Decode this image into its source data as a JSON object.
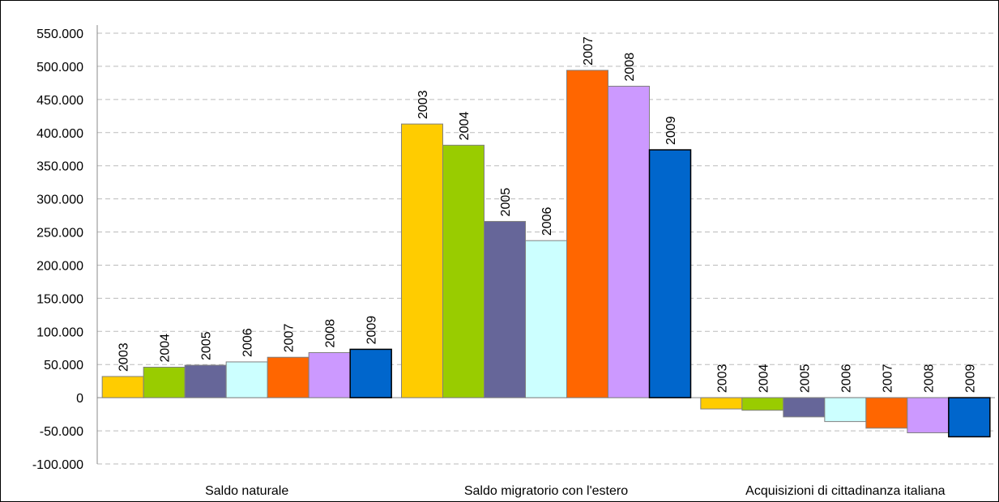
{
  "chart_data": {
    "type": "bar",
    "categories": [
      "Saldo naturale",
      "Saldo migratorio con l'estero",
      "Acquisizioni di cittadinanza italiana"
    ],
    "series": [
      {
        "name": "2003",
        "color": "#ffcc00",
        "values": [
          32000,
          413000,
          -17000
        ]
      },
      {
        "name": "2004",
        "color": "#99cc00",
        "values": [
          46000,
          381000,
          -19000
        ]
      },
      {
        "name": "2005",
        "color": "#666699",
        "values": [
          49000,
          266000,
          -29000
        ]
      },
      {
        "name": "2006",
        "color": "#ccffff",
        "values": [
          54000,
          237000,
          -36000
        ]
      },
      {
        "name": "2007",
        "color": "#ff6600",
        "values": [
          61000,
          494000,
          -46000
        ]
      },
      {
        "name": "2008",
        "color": "#cc99ff",
        "values": [
          68000,
          470000,
          -53000
        ]
      },
      {
        "name": "2009",
        "color": "#0066cc",
        "values": [
          73000,
          374000,
          -59000
        ]
      }
    ],
    "ylim": [
      -100000,
      550000
    ],
    "yticks": [
      {
        "value": -100000,
        "label": "-100.000"
      },
      {
        "value": -50000,
        "label": "-50.000"
      },
      0,
      {
        "value": 50000,
        "label": "50.000"
      },
      {
        "value": 100000,
        "label": "100.000"
      },
      {
        "value": 150000,
        "label": "150.000"
      },
      {
        "value": 200000,
        "label": "200.000"
      },
      {
        "value": 250000,
        "label": "250.000"
      },
      {
        "value": 300000,
        "label": "300.000"
      },
      {
        "value": 350000,
        "label": "350.000"
      },
      {
        "value": 400000,
        "label": "400.000"
      },
      {
        "value": 450000,
        "label": "450.000"
      },
      {
        "value": 500000,
        "label": "500.000"
      },
      {
        "value": 550000,
        "label": "550.000"
      }
    ],
    "grid": true
  }
}
